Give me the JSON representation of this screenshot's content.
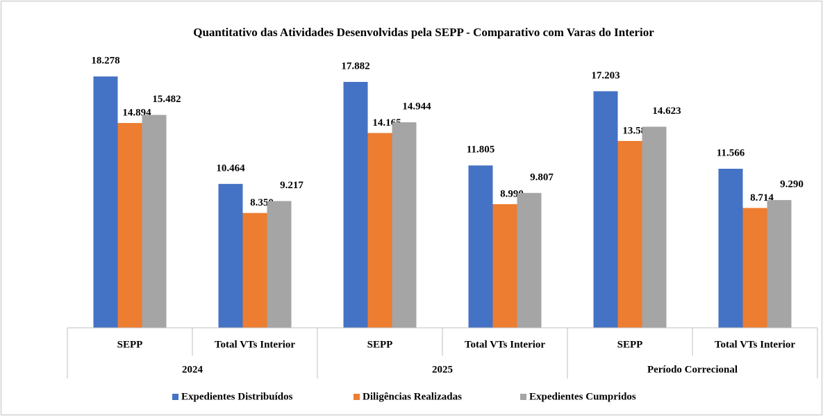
{
  "chart_data": {
    "type": "bar",
    "title": "Quantitativo das Atividades Desenvolvidas pela SEPP - Comparativo com Varas do Interior",
    "categories": [
      "SEPP",
      "Total VTs Interior",
      "SEPP",
      "Total VTs Interior",
      "SEPP",
      "Total VTs Interior"
    ],
    "category_groups": [
      "2024",
      "2025",
      "Período Correcional"
    ],
    "ylim": [
      0,
      20000
    ],
    "legend": "bottom",
    "series": [
      {
        "name": "Expedientes Distribuídos",
        "color": "#4472c4",
        "values": [
          18278,
          10464,
          17882,
          11805,
          17203,
          11566
        ],
        "value_labels": [
          "18.278",
          "10.464",
          "17.882",
          "11.805",
          "17.203",
          "11.566"
        ]
      },
      {
        "name": "Diligências Realizadas",
        "color": "#ed7d31",
        "values": [
          14894,
          8350,
          14165,
          8990,
          13587,
          8714
        ],
        "value_labels": [
          "14.894",
          "8.350",
          "14.165",
          "8.990",
          "13.587",
          "8.714"
        ]
      },
      {
        "name": "Expedientes Cumpridos",
        "color": "#a5a5a5",
        "values": [
          15482,
          9217,
          14944,
          9807,
          14623,
          9290
        ],
        "value_labels": [
          "15.482",
          "9.217",
          "14.944",
          "9.807",
          "14.623",
          "9.290"
        ]
      }
    ]
  }
}
